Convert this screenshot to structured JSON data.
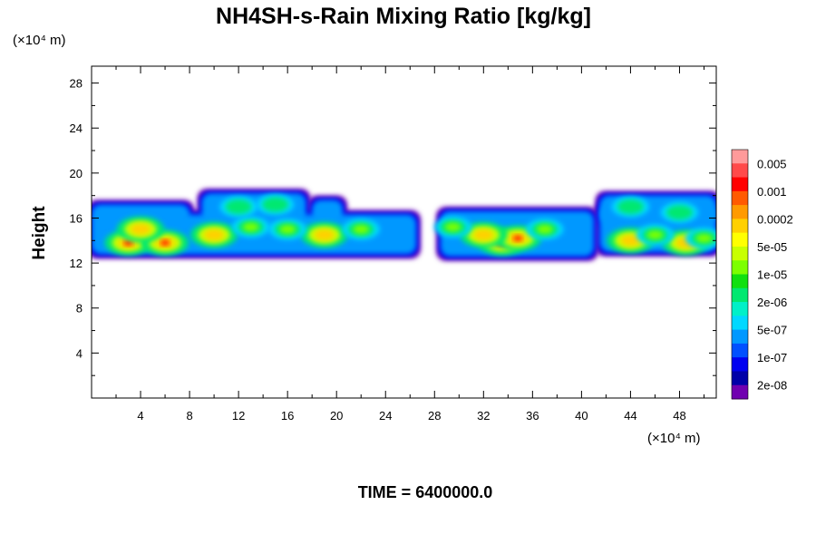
{
  "chart_data": {
    "type": "heatmap",
    "title": "NH4SH-s-Rain Mixing Ratio [kg/kg]",
    "xlabel": "",
    "ylabel": "Height",
    "x_unit": "(×10⁴ m)",
    "y_unit": "(×10⁴ m)",
    "xlim": [
      0,
      51
    ],
    "ylim": [
      0,
      29.5
    ],
    "x_ticks": [
      4,
      8,
      12,
      16,
      20,
      24,
      28,
      32,
      36,
      40,
      44,
      48
    ],
    "y_ticks": [
      4,
      8,
      12,
      16,
      20,
      24,
      28
    ],
    "colorbar": {
      "labels": [
        "0.005",
        "0.001",
        "0.0002",
        "5e-05",
        "1e-05",
        "2e-06",
        "5e-07",
        "1e-07",
        "2e-08"
      ],
      "colors": [
        "#ff9a9a",
        "#ff4a4a",
        "#ff0000",
        "#ff5a00",
        "#ff9a00",
        "#ffd000",
        "#ffff00",
        "#c8ff00",
        "#7cff00",
        "#10e010",
        "#00e870",
        "#00f0c8",
        "#00d8ff",
        "#0098ff",
        "#0050ff",
        "#0000f0",
        "#0000a8",
        "#7000b0"
      ]
    },
    "cloud_blobs": [
      {
        "x": 3.0,
        "y": 13.8,
        "level": 0
      },
      {
        "x": 6.0,
        "y": 13.8,
        "level": 0
      },
      {
        "x": 33.5,
        "y": 13.8,
        "level": 0
      },
      {
        "x": 34.8,
        "y": 14.2,
        "level": 0
      },
      {
        "x": 4.0,
        "y": 15.0,
        "level": 1
      },
      {
        "x": 10.0,
        "y": 14.5,
        "level": 1
      },
      {
        "x": 19.0,
        "y": 14.5,
        "level": 1
      },
      {
        "x": 32.0,
        "y": 14.5,
        "level": 1
      },
      {
        "x": 44.0,
        "y": 14.0,
        "level": 1
      },
      {
        "x": 48.5,
        "y": 13.8,
        "level": 1
      },
      {
        "x": 13.0,
        "y": 15.2,
        "level": 2
      },
      {
        "x": 16.0,
        "y": 15.0,
        "level": 2
      },
      {
        "x": 22.0,
        "y": 15.0,
        "level": 2
      },
      {
        "x": 29.5,
        "y": 15.2,
        "level": 2
      },
      {
        "x": 37.0,
        "y": 15.0,
        "level": 2
      },
      {
        "x": 46.0,
        "y": 14.5,
        "level": 2
      },
      {
        "x": 50.0,
        "y": 14.2,
        "level": 2
      },
      {
        "x": 12.0,
        "y": 17.0,
        "level": 3
      },
      {
        "x": 15.0,
        "y": 17.2,
        "level": 3
      },
      {
        "x": 44.0,
        "y": 17.0,
        "level": 3
      },
      {
        "x": 48.0,
        "y": 16.5,
        "level": 3
      }
    ]
  },
  "time_label": "TIME = 6400000.0"
}
